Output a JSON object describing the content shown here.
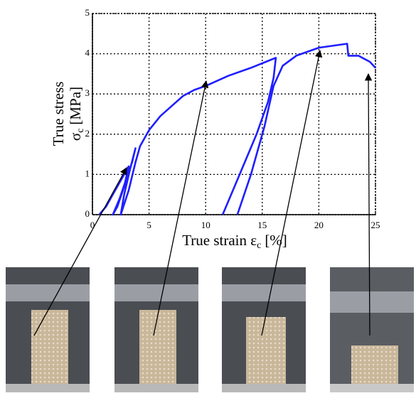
{
  "chart_data": {
    "type": "line",
    "ylabel": [
      "True stress",
      "σ",
      "c",
      "[MPa]"
    ],
    "xlabel": [
      "True strain ε",
      "c",
      "[%]"
    ],
    "series": [
      {
        "color": "#1f1fff",
        "x": [
          0.6,
          1.2,
          2,
          2.8,
          3.2,
          2.8,
          2.2,
          1.8,
          2.4,
          3.0,
          3.5,
          3.8,
          3.3,
          2.8,
          2.5,
          3.2,
          3.8,
          4.2,
          5,
          6,
          7,
          8,
          9,
          10,
          12,
          14,
          16.2,
          16,
          15.5,
          14.5,
          13,
          11.5,
          null,
          12.8,
          14,
          15.2,
          16,
          16.8,
          18,
          20,
          22.5,
          22.6,
          23.5,
          24.5,
          25
        ],
        "y": [
          0,
          0.2,
          0.6,
          1.0,
          1.2,
          0.7,
          0.2,
          0,
          0.4,
          0.9,
          1.3,
          1.65,
          1.1,
          0.5,
          0,
          0.6,
          1.3,
          1.7,
          2.1,
          2.45,
          2.7,
          2.95,
          3.1,
          3.2,
          3.45,
          3.65,
          3.9,
          3.4,
          2.8,
          2.0,
          1.0,
          0,
          null,
          0,
          1.0,
          2.2,
          3.2,
          3.7,
          3.95,
          4.15,
          4.25,
          3.95,
          3.95,
          3.8,
          3.65
        ]
      }
    ],
    "xlim": [
      0,
      25
    ],
    "xticks": [
      0,
      5,
      10,
      15,
      20,
      25
    ],
    "ylim": [
      0,
      5
    ],
    "yticks": [
      0,
      1,
      2,
      3,
      4,
      5
    ],
    "grid": true
  }
}
